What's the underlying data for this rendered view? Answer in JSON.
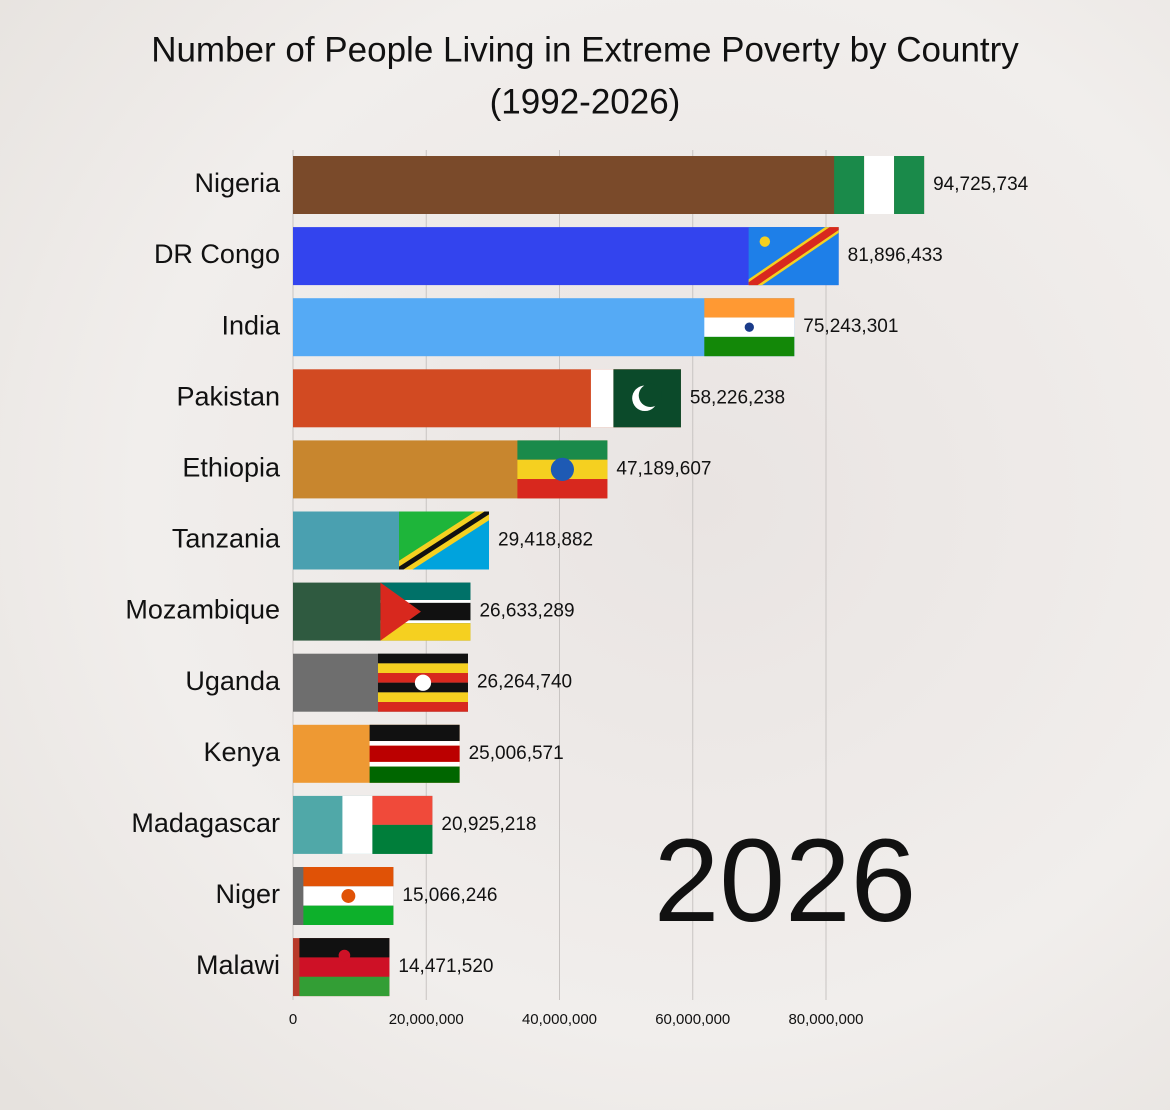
{
  "chart_data": {
    "type": "barh",
    "title": "Number of People Living in Extreme Poverty by Country",
    "subtitle": "(1992-2026)",
    "annotation": "2026",
    "categories": [
      "Nigeria",
      "DR Congo",
      "India",
      "Pakistan",
      "Ethiopia",
      "Tanzania",
      "Mozambique",
      "Uganda",
      "Kenya",
      "Madagascar",
      "Niger",
      "Malawi"
    ],
    "values": [
      94725734,
      81896433,
      75243301,
      58226238,
      47189607,
      29418882,
      26633289,
      26264740,
      25006571,
      20925218,
      15066246,
      14471520
    ],
    "value_labels": [
      "94,725,734",
      "81,896,433",
      "75,243,301",
      "58,226,238",
      "47,189,607",
      "29,418,882",
      "26,633,289",
      "26,264,740",
      "25,006,571",
      "20,925,218",
      "15,066,246",
      "14,471,520"
    ],
    "colors": [
      "#7a4a2a",
      "#3344ee",
      "#55aaf5",
      "#d24a22",
      "#c8862e",
      "#4aa0b0",
      "#2f5a40",
      "#6e6e6e",
      "#ee9933",
      "#50a8a8",
      "#6a6a6a",
      "#b83a2a"
    ],
    "xlim": [
      0,
      95000000
    ],
    "xticks": [
      0,
      {
        "value": 20000000,
        "label": "20,000,000"
      },
      {
        "value": 40000000,
        "label": "40,000,000"
      },
      {
        "value": 60000000,
        "label": "60,000,000"
      },
      {
        "value": 80000000,
        "label": "80,000,000"
      }
    ],
    "grid": true
  }
}
